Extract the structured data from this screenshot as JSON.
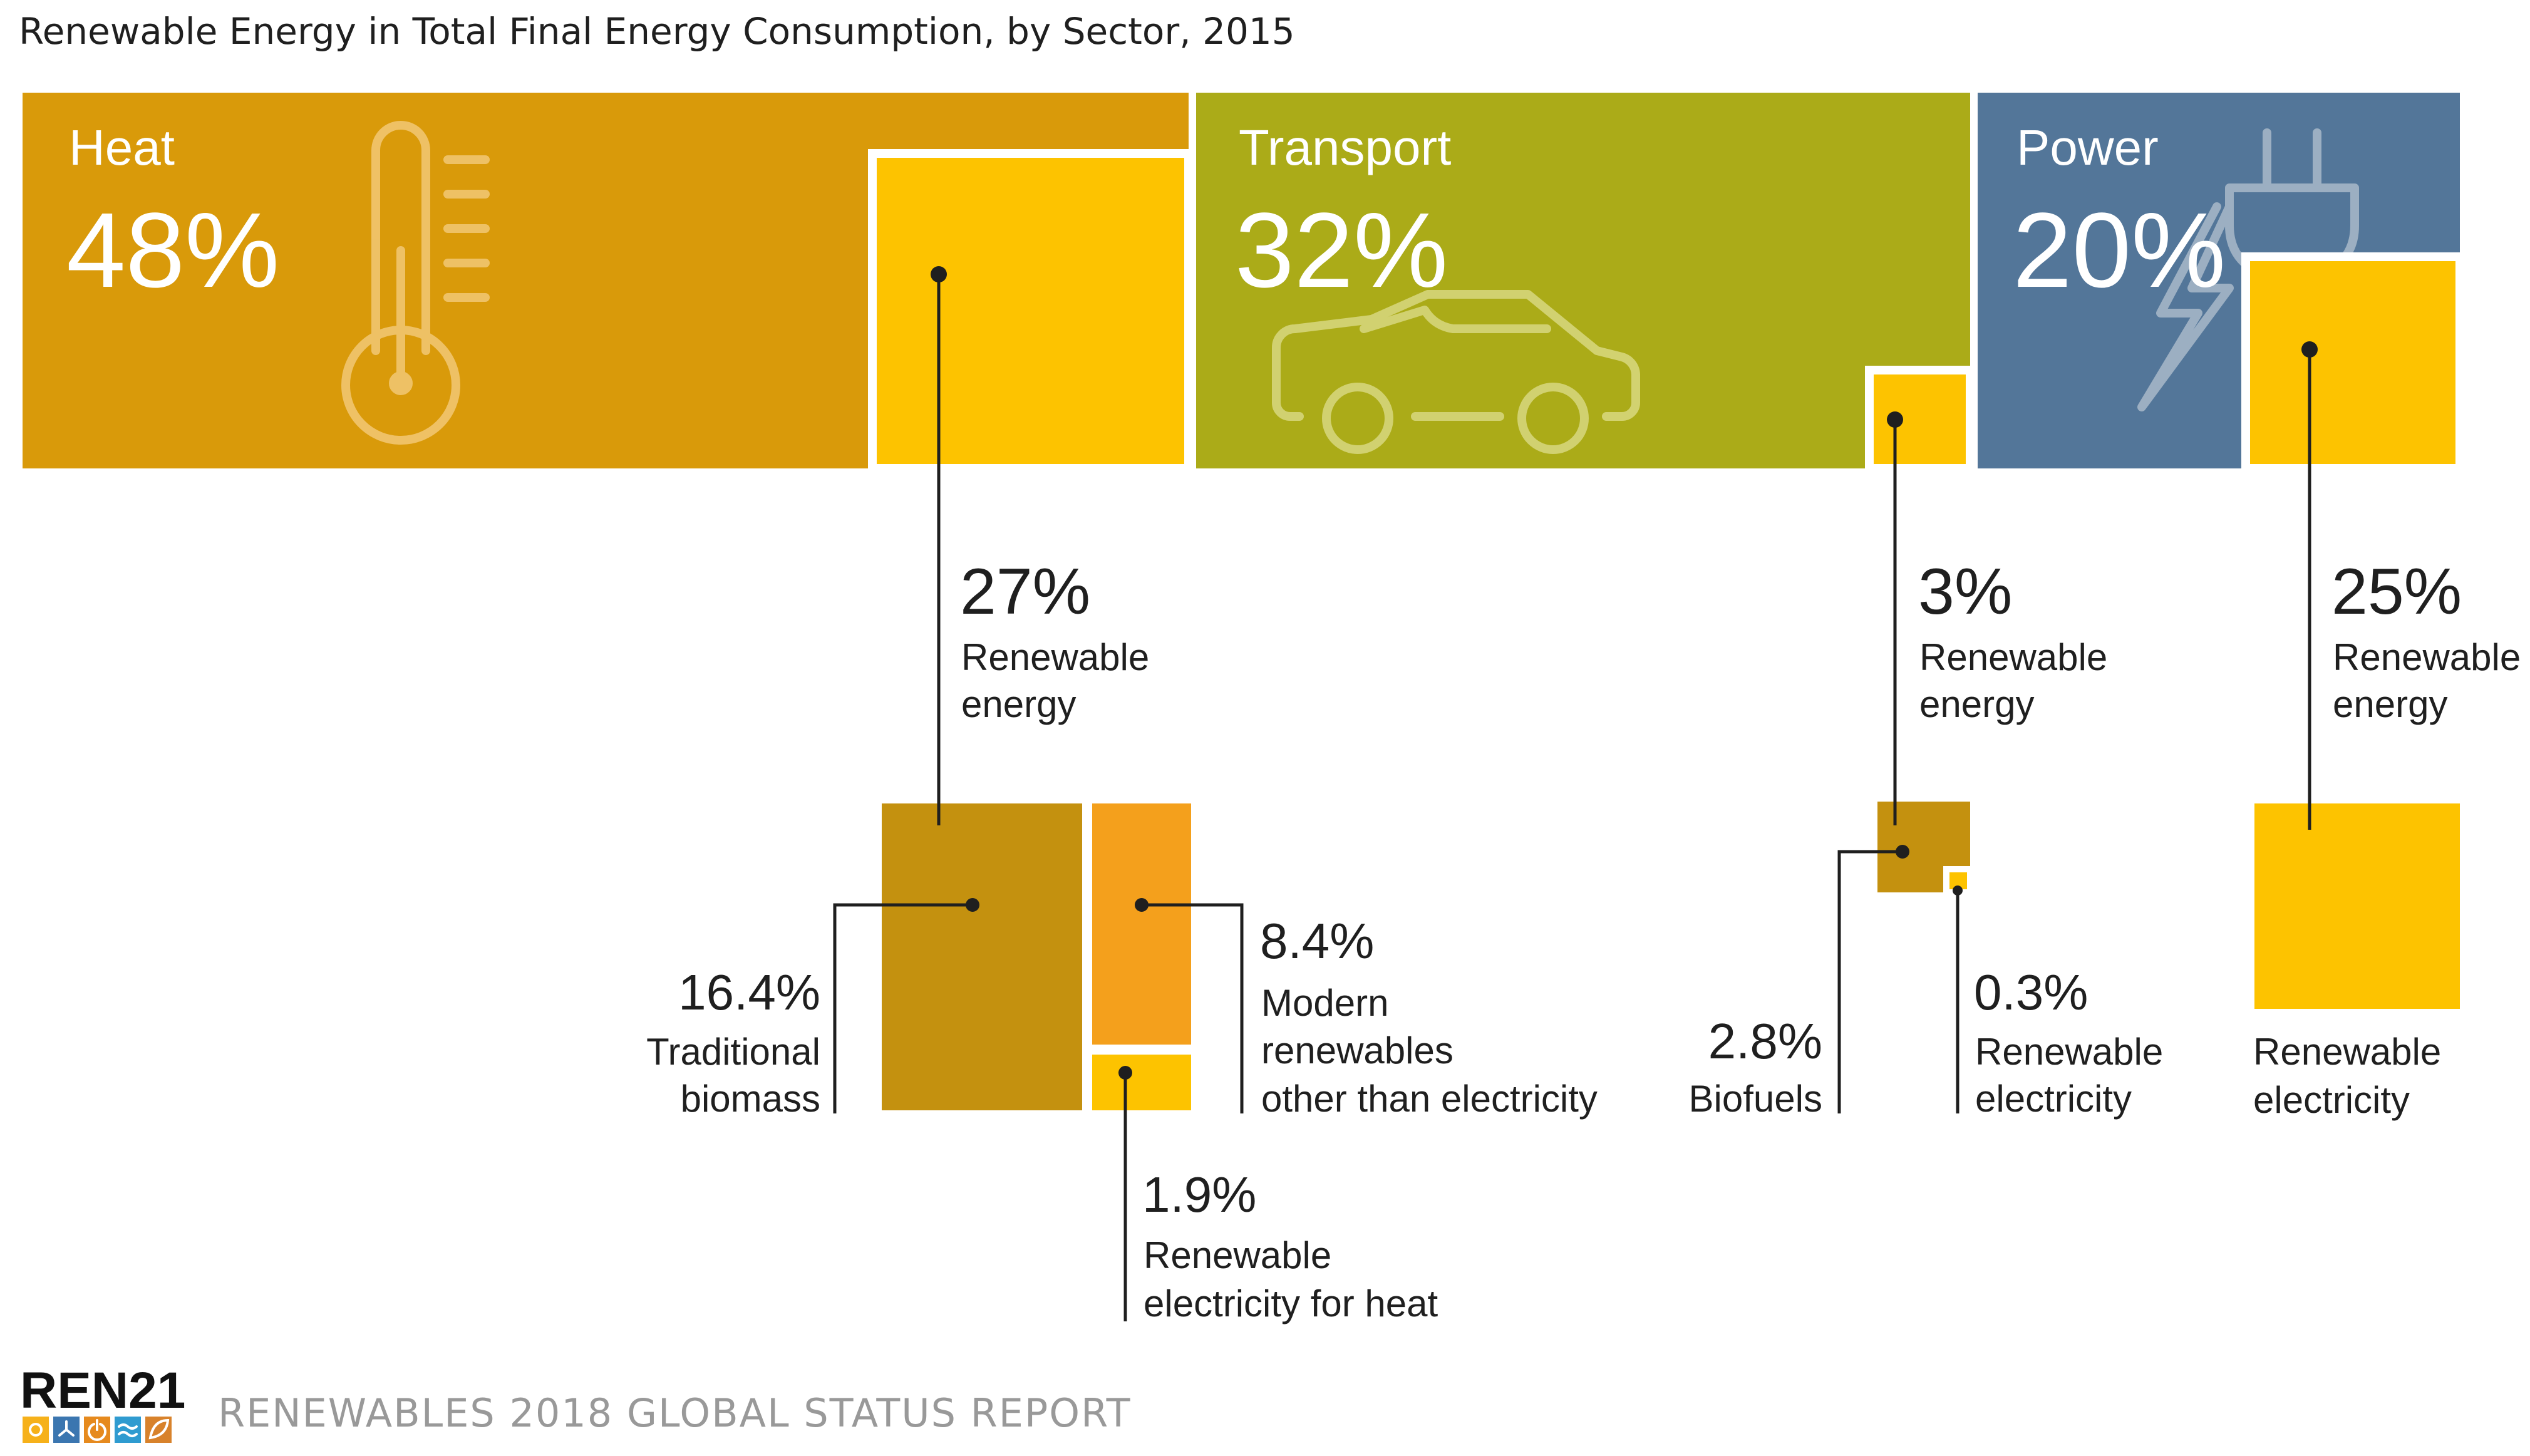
{
  "title": "Renewable Energy in Total Final Energy Consumption, by Sector, 2015",
  "footer": {
    "logo_text": "REN21",
    "report": "RENEWABLES 2018 GLOBAL STATUS REPORT"
  },
  "colors": {
    "heat": "#d99a0a",
    "transport": "#abab18",
    "power": "#537699",
    "renewable": "#fdc300",
    "biomass": "#c4910f",
    "modern": "#f4a01c",
    "line": "#1f1f1f",
    "text": "#1f1f1f",
    "footer_grey": "#999999"
  },
  "chart_data": {
    "type": "treemap",
    "title": "Renewable Energy in Total Final Energy Consumption, by Sector, 2015",
    "sectors": [
      {
        "name": "Heat",
        "share_label": "48%",
        "share": 48,
        "icon": "thermometer-icon",
        "renewable": {
          "value": 27,
          "value_label": "27%",
          "text_lines": [
            "Renewable",
            "energy"
          ]
        },
        "breakdown": [
          {
            "value": 16.4,
            "value_label": "16.4%",
            "text_lines": [
              "Traditional",
              "biomass"
            ]
          },
          {
            "value": 8.4,
            "value_label": "8.4%",
            "text_lines": [
              "Modern",
              "renewables",
              "other than electricity"
            ]
          },
          {
            "value": 1.9,
            "value_label": "1.9%",
            "text_lines": [
              "Renewable",
              "electricity for heat"
            ]
          }
        ]
      },
      {
        "name": "Transport",
        "share_label": "32%",
        "share": 32,
        "icon": "car-icon",
        "renewable": {
          "value": 3,
          "value_label": "3%",
          "text_lines": [
            "Renewable",
            "energy"
          ]
        },
        "breakdown": [
          {
            "value": 2.8,
            "value_label": "2.8%",
            "text_lines": [
              "Biofuels"
            ]
          },
          {
            "value": 0.3,
            "value_label": "0.3%",
            "text_lines": [
              "Renewable",
              "electricity"
            ]
          }
        ]
      },
      {
        "name": "Power",
        "share_label": "20%",
        "share": 20,
        "icon": "plug-icon",
        "renewable": {
          "value": 25,
          "value_label": "25%",
          "text_lines": [
            "Renewable",
            "energy"
          ]
        },
        "breakdown": [
          {
            "value": 25,
            "value_label": "",
            "text_lines": [
              "Renewable",
              "electricity"
            ]
          }
        ]
      }
    ]
  }
}
